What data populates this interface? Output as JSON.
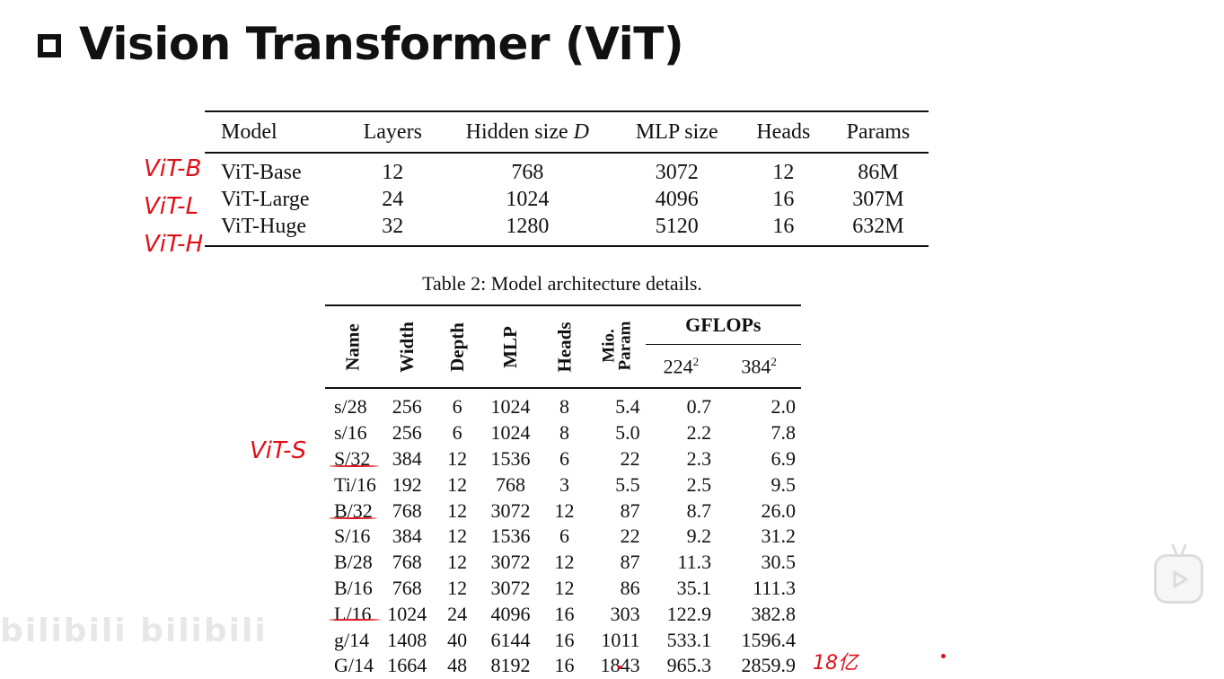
{
  "title": "Vision Transformer (ViT)",
  "table1": {
    "headers": [
      "Model",
      "Layers",
      "Hidden size D",
      "MLP size",
      "Heads",
      "Params"
    ],
    "rows": [
      [
        "ViT-Base",
        "12",
        "768",
        "3072",
        "12",
        "86M"
      ],
      [
        "ViT-Large",
        "24",
        "1024",
        "4096",
        "16",
        "307M"
      ],
      [
        "ViT-Huge",
        "32",
        "1280",
        "5120",
        "16",
        "632M"
      ]
    ],
    "caption": "Table 2: Model architecture details."
  },
  "table2": {
    "headers": {
      "name": "Name",
      "width": "Width",
      "depth": "Depth",
      "mlp": "MLP",
      "heads": "Heads",
      "mio_line1": "Mio.",
      "mio_line2": "Param",
      "gflops": "GFLOPs",
      "res1_base": "224",
      "res2_base": "384",
      "exp": "2"
    },
    "rows": [
      [
        "s/28",
        "256",
        "6",
        "1024",
        "8",
        "5.4",
        "0.7",
        "2.0"
      ],
      [
        "s/16",
        "256",
        "6",
        "1024",
        "8",
        "5.0",
        "2.2",
        "7.8"
      ],
      [
        "S/32",
        "384",
        "12",
        "1536",
        "6",
        "22",
        "2.3",
        "6.9"
      ],
      [
        "Ti/16",
        "192",
        "12",
        "768",
        "3",
        "5.5",
        "2.5",
        "9.5"
      ],
      [
        "B/32",
        "768",
        "12",
        "3072",
        "12",
        "87",
        "8.7",
        "26.0"
      ],
      [
        "S/16",
        "384",
        "12",
        "1536",
        "6",
        "22",
        "9.2",
        "31.2"
      ],
      [
        "B/28",
        "768",
        "12",
        "3072",
        "12",
        "87",
        "11.3",
        "30.5"
      ],
      [
        "B/16",
        "768",
        "12",
        "3072",
        "12",
        "86",
        "35.1",
        "111.3"
      ],
      [
        "L/16",
        "1024",
        "24",
        "4096",
        "16",
        "303",
        "122.9",
        "382.8"
      ],
      [
        "g/14",
        "1408",
        "40",
        "6144",
        "16",
        "1011",
        "533.1",
        "1596.4"
      ],
      [
        "G/14",
        "1664",
        "48",
        "8192",
        "16",
        "1843",
        "965.3",
        "2859.9"
      ]
    ]
  },
  "annotations": {
    "vit_b": "ViT-B",
    "vit_l": "ViT-L",
    "vit_h": "ViT-H",
    "vit_s": "ViT-S",
    "g14_note": "18亿"
  },
  "watermark": "bilibili bilibili",
  "colors": {
    "ink": "#111111",
    "annotation": "#e0101a"
  },
  "icons": {
    "play_button": "play-icon"
  }
}
